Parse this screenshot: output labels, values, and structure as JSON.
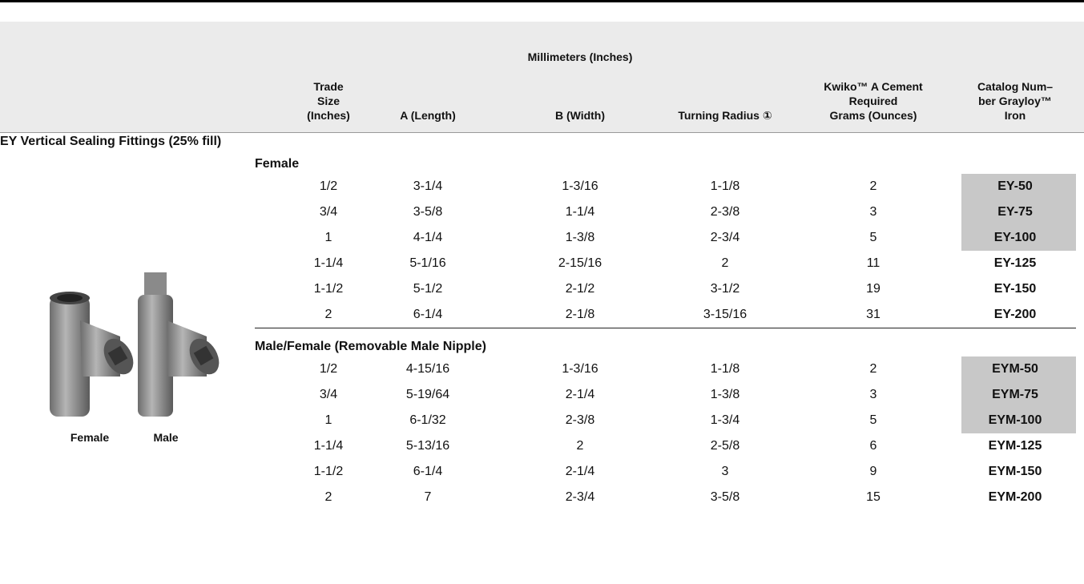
{
  "header": {
    "group_label": "Millimeters (Inches)",
    "columns": [
      "Trade\nSize\n(Inches)",
      "A (Length)",
      "B (Width)",
      "Turning Radius ①",
      "Kwiko™ A Cement\nRequired\nGrams (Ounces)",
      "Catalog Num–\nber Grayloy™\nIron"
    ]
  },
  "section": "EY Vertical Sealing Fittings (25% fill)",
  "images": [
    {
      "caption": "Female"
    },
    {
      "caption": "Male"
    }
  ],
  "groups": [
    {
      "label": "Female",
      "rows": [
        [
          "1/2",
          "3-1/4",
          "1-3/16",
          "1-1/8",
          "2",
          "EY-50"
        ],
        [
          "3/4",
          "3-5/8",
          "1-1/4",
          "2-3/8",
          "3",
          "EY-75"
        ],
        [
          "1",
          "4-1/4",
          "1-3/8",
          "2-3/4",
          "5",
          "EY-100"
        ],
        [
          "1-1/4",
          "5-1/16",
          "2-15/16",
          "2",
          "11",
          "EY-125"
        ],
        [
          "1-1/2",
          "5-1/2",
          "2-1/2",
          "3-1/2",
          "19",
          "EY-150"
        ],
        [
          "2",
          "6-1/4",
          "2-1/8",
          "3-15/16",
          "31",
          "EY-200"
        ]
      ]
    },
    {
      "label": "Male/Female (Removable Male Nipple)",
      "rows": [
        [
          "1/2",
          "4-15/16",
          "1-3/16",
          "1-1/8",
          "2",
          "EYM-50"
        ],
        [
          "3/4",
          "5-19/64",
          "2-1/4",
          "1-3/8",
          "3",
          "EYM-75"
        ],
        [
          "1",
          "6-1/32",
          "2-3/8",
          "1-3/4",
          "5",
          "EYM-100"
        ],
        [
          "1-1/4",
          "5-13/16",
          "2",
          "2-5/8",
          "6",
          "EYM-125"
        ],
        [
          "1-1/2",
          "6-1/4",
          "2-1/4",
          "3",
          "9",
          "EYM-150"
        ],
        [
          "2",
          "7",
          "2-3/4",
          "3-5/8",
          "15",
          "EYM-200"
        ]
      ]
    }
  ]
}
